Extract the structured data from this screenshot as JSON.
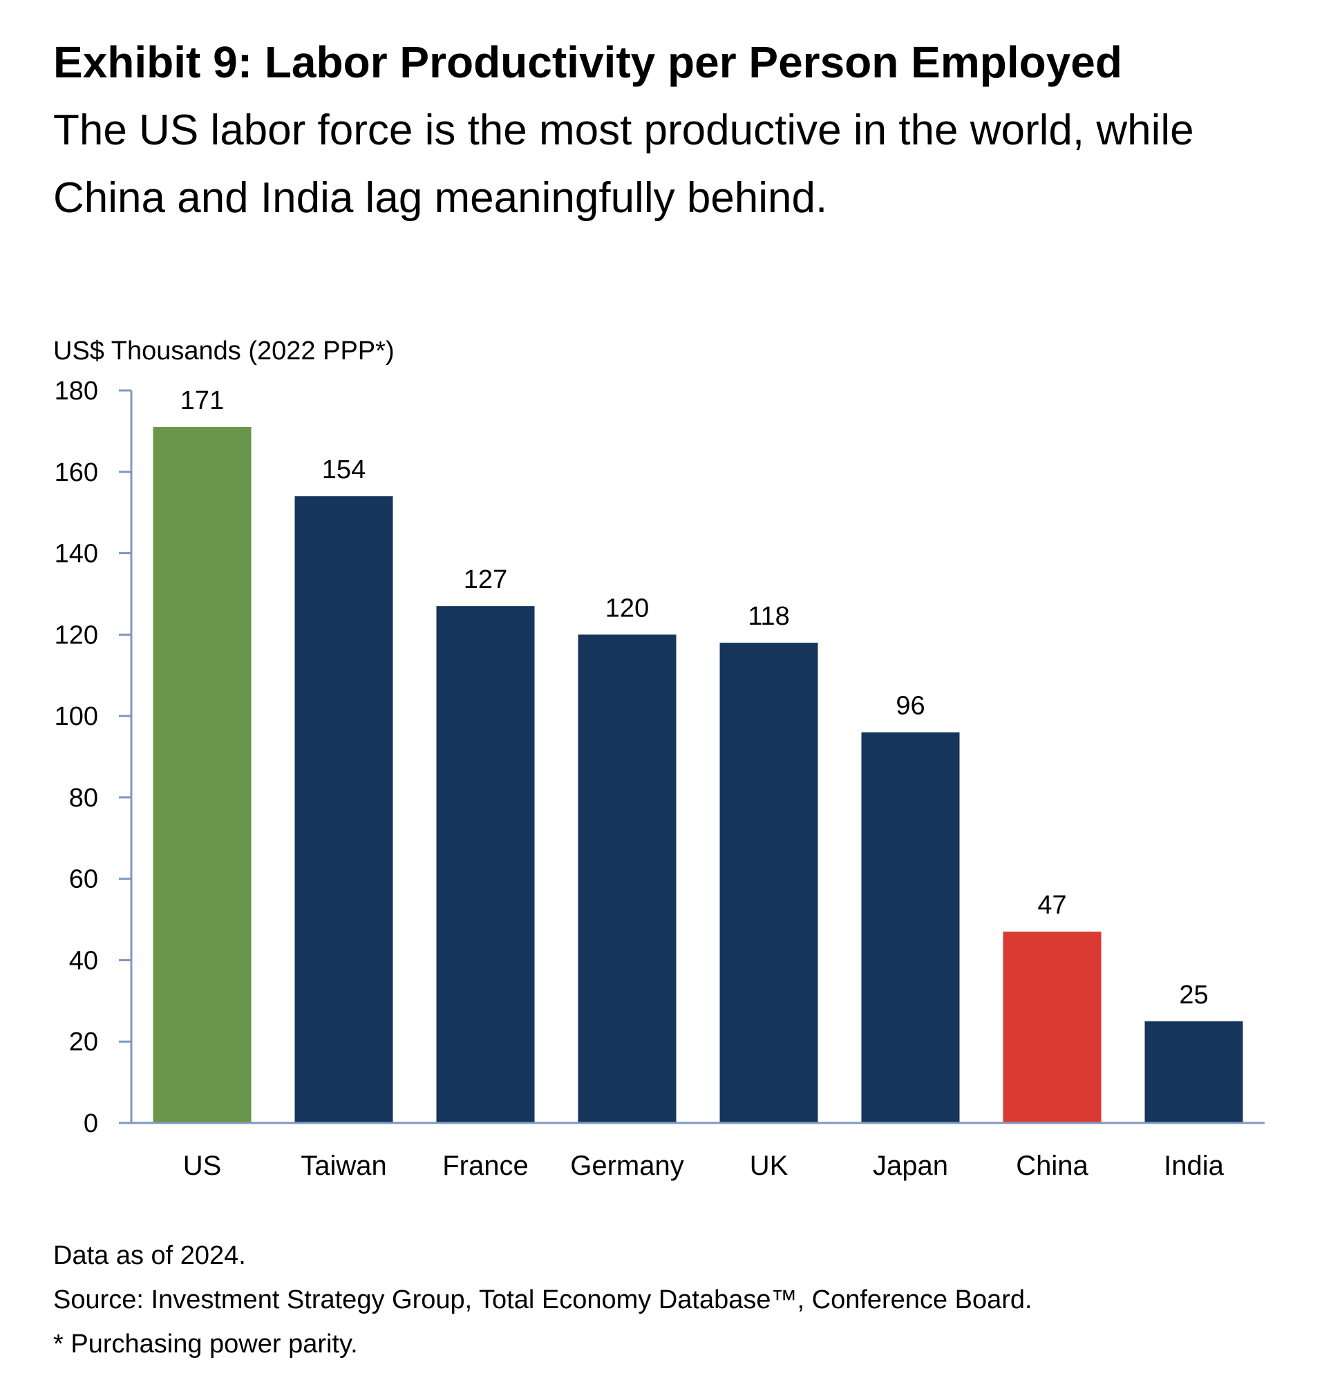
{
  "header": {
    "title": "Exhibit 9: Labor Productivity per Person Employed",
    "subtitle": "The US labor force is the most productive in the world, while China and India lag meaningfully behind."
  },
  "chart_data": {
    "type": "bar",
    "title": "Exhibit 9: Labor Productivity per Person Employed",
    "ylabel": "US$ Thousands (2022 PPP*)",
    "xlabel": "",
    "categories": [
      "US",
      "Taiwan",
      "France",
      "Germany",
      "UK",
      "Japan",
      "China",
      "India"
    ],
    "values": [
      171,
      154,
      127,
      120,
      118,
      96,
      47,
      25
    ],
    "data_labels": [
      "171",
      "154",
      "127",
      "120",
      "118",
      "96",
      "47",
      "25"
    ],
    "bar_colors": [
      "#6a964b",
      "#15355a",
      "#15355a",
      "#15355a",
      "#15355a",
      "#15355a",
      "#d93b32",
      "#15355a"
    ],
    "ylim": [
      0,
      180
    ],
    "yticks": [
      0,
      20,
      40,
      60,
      80,
      100,
      120,
      140,
      160,
      180
    ],
    "ytick_labels": [
      "0",
      "20",
      "40",
      "60",
      "80",
      "100",
      "120",
      "140",
      "160",
      "180"
    ],
    "axis_color": "#7f98bf",
    "grid": false,
    "legend": "none"
  },
  "footnotes": {
    "data_as_of": "Data as of 2024.",
    "source": "Source: Investment Strategy Group, Total Economy Database™, Conference Board.",
    "ppp_note": "* Purchasing power parity."
  }
}
